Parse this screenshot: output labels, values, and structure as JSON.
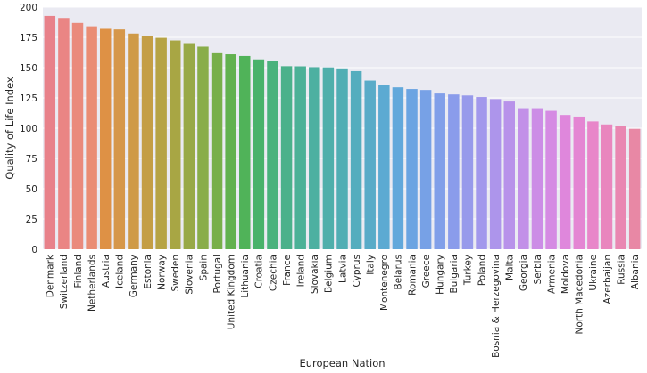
{
  "chart_data": {
    "type": "bar",
    "xlabel": "European Nation",
    "ylabel": "Quality of Life Index",
    "ylim": [
      0,
      200
    ],
    "yticks": [
      0,
      25,
      50,
      75,
      100,
      125,
      150,
      175,
      200
    ],
    "grid": true,
    "background": "#EAEAF2",
    "categories": [
      "Denmark",
      "Switzerland",
      "Finland",
      "Netherlands",
      "Austria",
      "Iceland",
      "Germany",
      "Estonia",
      "Norway",
      "Sweden",
      "Slovenia",
      "Spain",
      "Portugal",
      "United Kingdom",
      "Lithuania",
      "Croatia",
      "Czechia",
      "France",
      "Ireland",
      "Slovakia",
      "Belgium",
      "Latvia",
      "Cyprus",
      "Italy",
      "Montenegro",
      "Belarus",
      "Romania",
      "Greece",
      "Hungary",
      "Bulgaria",
      "Turkey",
      "Poland",
      "Bosnia & Herzegovina",
      "Malta",
      "Georgia",
      "Serbia",
      "Armenia",
      "Moldova",
      "North Macedonia",
      "Ukraine",
      "Azerbaijan",
      "Russia",
      "Albania"
    ],
    "values": [
      192.7,
      191.0,
      186.9,
      184.1,
      182.0,
      181.5,
      178.1,
      176.2,
      174.6,
      172.4,
      170.2,
      167.3,
      162.6,
      161.0,
      159.6,
      156.8,
      155.7,
      151.2,
      151.1,
      150.4,
      150.2,
      149.4,
      147.1,
      139.3,
      135.4,
      133.7,
      132.3,
      131.5,
      128.6,
      127.8,
      127.0,
      125.7,
      124.0,
      122.0,
      116.5,
      116.5,
      114.3,
      110.9,
      109.6,
      105.6,
      103.1,
      101.9,
      99.5
    ],
    "colors": [
      "#E8818A",
      "#EA8584",
      "#EA8A7C",
      "#EA8D74",
      "#DE9145",
      "#D6974A",
      "#CF9A47",
      "#C49E45",
      "#B6A345",
      "#A8A644",
      "#98A947",
      "#89AD4A",
      "#78AF4A",
      "#62B14F",
      "#50B359",
      "#49B26B",
      "#4AB27D",
      "#4BB18B",
      "#4CB197",
      "#4DB0A1",
      "#4FAFAB",
      "#51AEB4",
      "#54ADBE",
      "#59ABC8",
      "#5CAAD2",
      "#62A8DB",
      "#6BA4E2",
      "#77A1E6",
      "#819FE9",
      "#8A9CEB",
      "#979AEB",
      "#A298EC",
      "#AD95EB",
      "#B892EA",
      "#C290E8",
      "#CC8DE6",
      "#D58BE3",
      "#DF87DC",
      "#E486D3",
      "#E886C9",
      "#E986BE",
      "#E987B2",
      "#E888A5"
    ]
  }
}
